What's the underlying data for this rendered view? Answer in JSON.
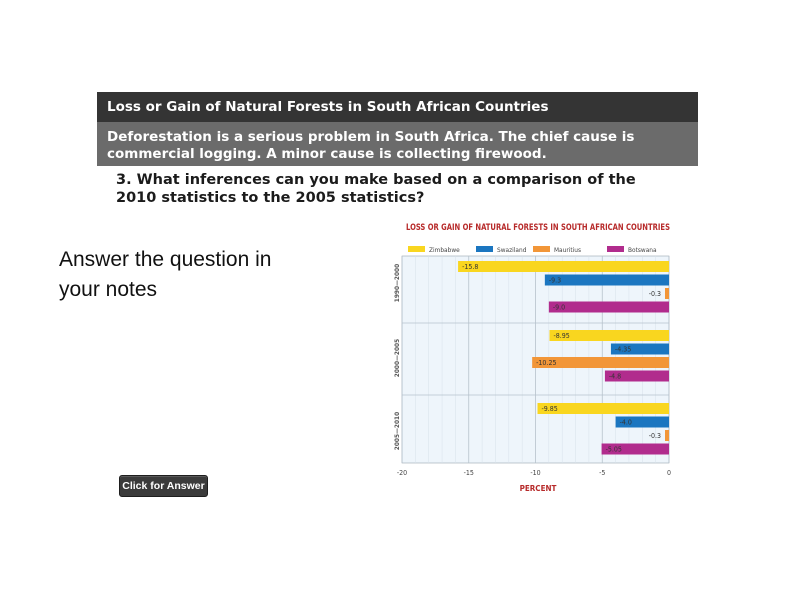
{
  "banner": {
    "title": "Loss or Gain of Natural Forests in South African Countries",
    "body_line1": "Deforestation is a serious problem in South Africa. The chief cause is",
    "body_line2": "commercial logging. A minor cause is collecting firewood."
  },
  "question": {
    "line1": "3. What inferences can you make based on a comparison of the",
    "line2": "2010 statistics to the 2005 statistics?"
  },
  "prompt": {
    "line1": "Answer the question in",
    "line2": "your notes"
  },
  "button": {
    "label": "Click for Answer"
  },
  "colors": {
    "banner_dark": "#343434",
    "banner_mid": "#6b6b6b",
    "plot_bg": "#eef5fb",
    "Zimbabwe": "#f9d61f",
    "Swaziland": "#1b76c0",
    "Mauritius": "#f29638",
    "Botswana": "#b12c8d",
    "title_red": "#b72a2a"
  },
  "chart_data": {
    "type": "bar",
    "orientation": "horizontal",
    "title": "LOSS OR GAIN OF NATURAL FORESTS IN SOUTH AFRICAN COUNTRIES",
    "xlabel": "PERCENT",
    "ylabel": "",
    "xlim": [
      -20,
      0
    ],
    "xticks": [
      -20,
      -15,
      -10,
      -5,
      0
    ],
    "legend_position": "top",
    "grid": true,
    "categories": [
      "1990—2000",
      "2000—2005",
      "2005—2010"
    ],
    "series": [
      {
        "name": "Zimbabwe",
        "values": [
          -15.8,
          -8.95,
          -9.85
        ],
        "labels": [
          "-15.8",
          "-8.95",
          "-9.85"
        ]
      },
      {
        "name": "Swaziland",
        "values": [
          -9.3,
          -4.35,
          -4.0
        ],
        "labels": [
          "-9.3",
          "-4.35",
          "-4.0"
        ]
      },
      {
        "name": "Mauritius",
        "values": [
          -0.3,
          -10.25,
          -0.3
        ],
        "labels": [
          "-0.3",
          "-10.25",
          "-0.3"
        ]
      },
      {
        "name": "Botswana",
        "values": [
          -9.0,
          -4.8,
          -5.05
        ],
        "labels": [
          "-9.0",
          "-4.8",
          "-5.05"
        ]
      }
    ]
  }
}
